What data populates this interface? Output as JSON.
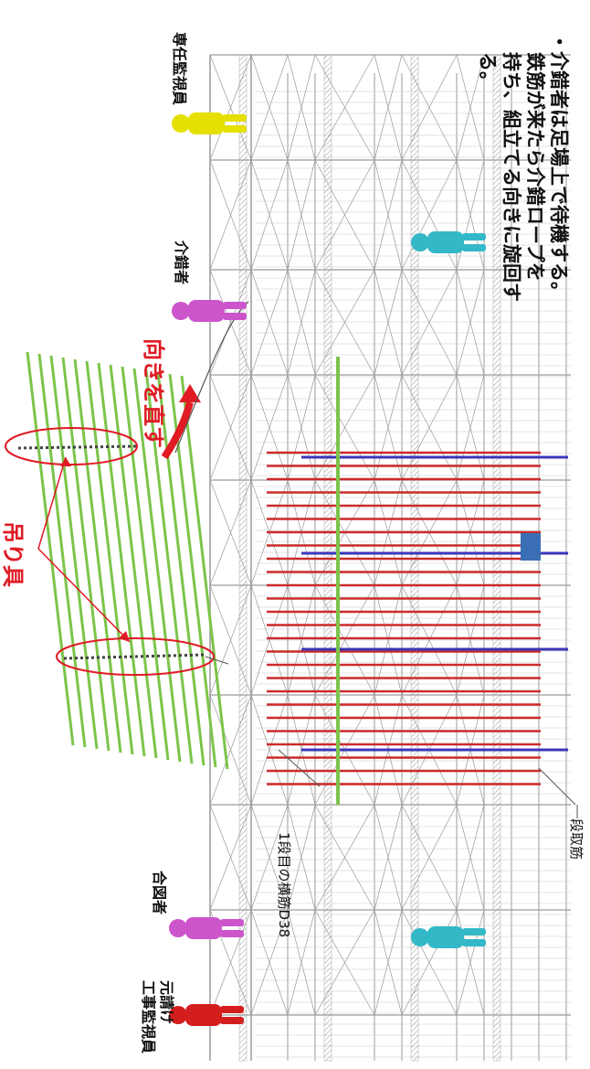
{
  "labels": {
    "note_bullet": "・",
    "note_line1": "介錯者は足場上で待機する。",
    "note_line2": "鉄筋が来たら介錯ロープを",
    "note_line3": "持ち、組立てる向きに旋回す",
    "note_line4": "る。",
    "tsurigu": "吊り具",
    "muki": "向きを直す",
    "sennin": "専任監視員",
    "kaishaku": "介錯者",
    "aizu": "合図者",
    "moto1": "元請け",
    "moto2": "工事監視員",
    "yokokin": "1段目の横筋D38",
    "dantori": "段取筋"
  },
  "colors": {
    "red_text": "#e01b24",
    "red_bar": "#cc2a2a",
    "blue_bar": "#3a37b8",
    "green_bar": "#7cc44a",
    "yellow_person": "#e6e000",
    "magenta_person": "#cc55cc",
    "cyan_person": "#33b8c8",
    "red_person": "#d41e1e",
    "scaffold": "#9a9a9a",
    "accent_square": "#3a6fb5"
  }
}
